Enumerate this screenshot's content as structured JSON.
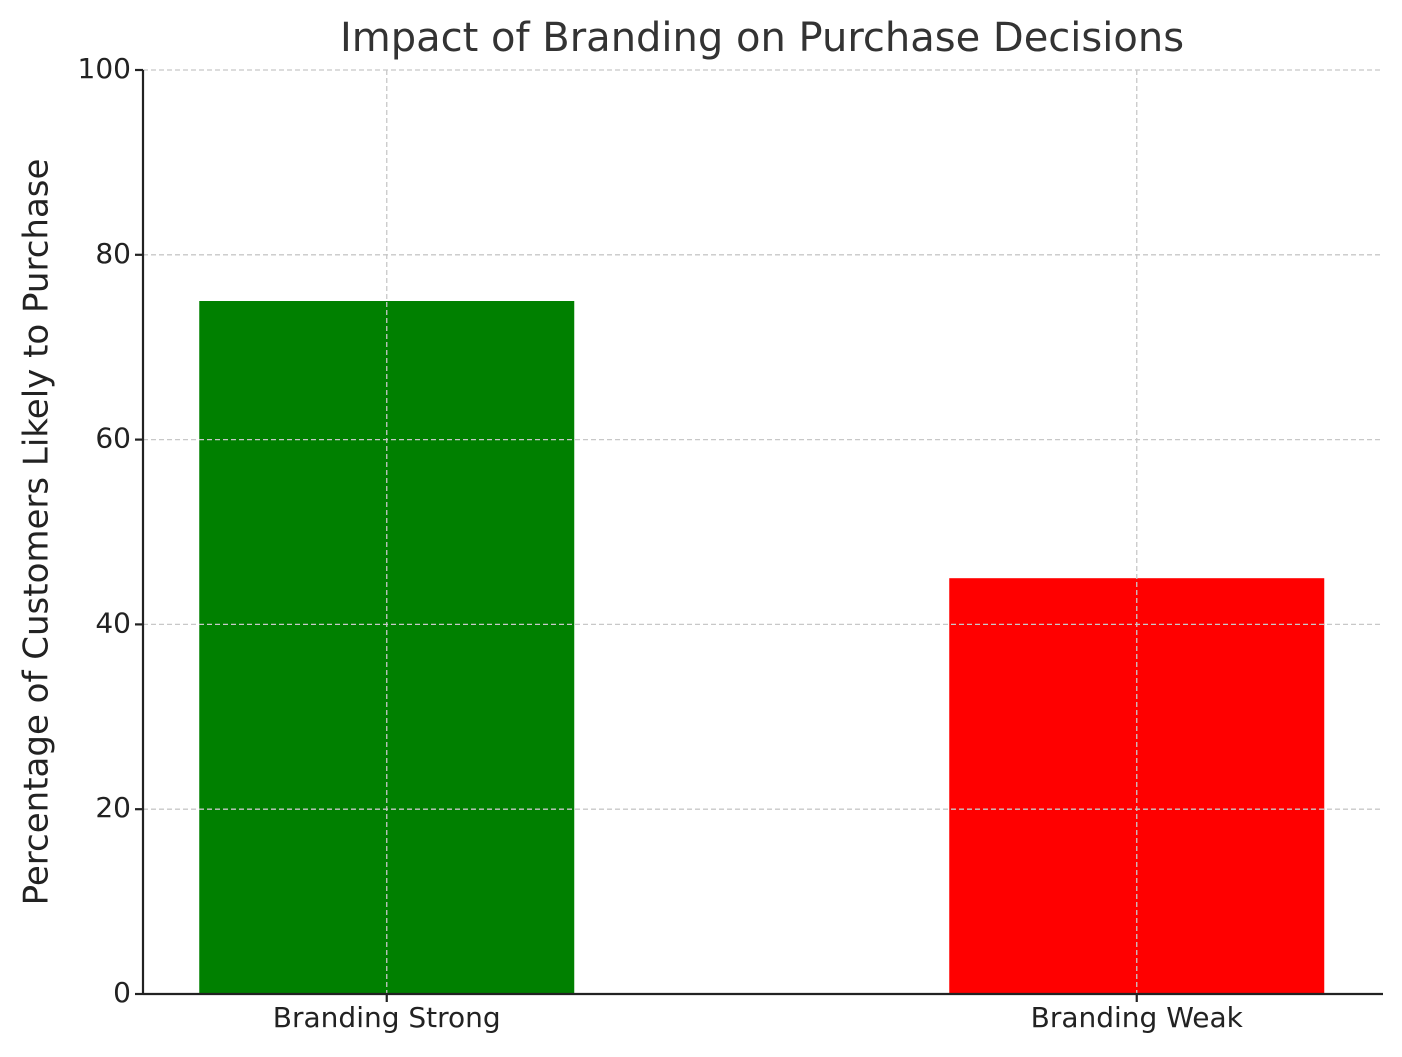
{
  "chart_data": {
    "type": "bar",
    "title": "Impact of Branding on Purchase Decisions",
    "y_label": "Percentage of Customers Likely to Purchase",
    "categories": [
      "Branding Strong",
      "Branding Weak"
    ],
    "values": [
      75,
      45
    ],
    "colors": [
      "#008000",
      "#ff0000"
    ],
    "ylim": [
      0,
      100
    ],
    "yticks": [
      0,
      20,
      40,
      60,
      80,
      100
    ],
    "grid": true
  }
}
